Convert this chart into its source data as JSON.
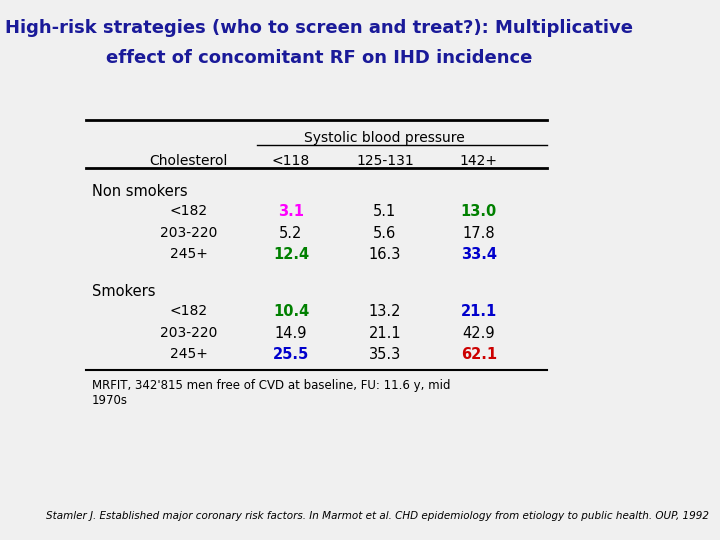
{
  "title_line1": "High-risk strategies (who to screen and treat?): Multiplicative",
  "title_line2": "effect of concomitant RF on IHD incidence",
  "title_color": "#1a1a99",
  "bg_color": "#f0f0f0",
  "sbp_header": "Systolic blood pressure",
  "col_headers": [
    "Cholesterol",
    "<118",
    "125-131",
    "142+"
  ],
  "row_group1": "Non smokers",
  "row_group2": "Smokers",
  "chol_labels": [
    "<182",
    "203-220",
    "245+"
  ],
  "non_smokers_data": [
    [
      "3.1",
      "5.1",
      "13.0"
    ],
    [
      "5.2",
      "5.6",
      "17.8"
    ],
    [
      "12.4",
      "16.3",
      "33.4"
    ]
  ],
  "smokers_data": [
    [
      "10.4",
      "13.2",
      "21.1"
    ],
    [
      "14.9",
      "21.1",
      "42.9"
    ],
    [
      "25.5",
      "35.3",
      "62.1"
    ]
  ],
  "non_smokers_colors": [
    [
      "#ff00ff",
      "#000000",
      "#008000"
    ],
    [
      "#000000",
      "#000000",
      "#000000"
    ],
    [
      "#008000",
      "#000000",
      "#0000cc"
    ]
  ],
  "smokers_colors": [
    [
      "#008000",
      "#000000",
      "#0000cc"
    ],
    [
      "#000000",
      "#000000",
      "#000000"
    ],
    [
      "#0000cc",
      "#000000",
      "#cc0000"
    ]
  ],
  "non_smokers_bold": [
    [
      true,
      false,
      true
    ],
    [
      false,
      false,
      false
    ],
    [
      true,
      false,
      true
    ]
  ],
  "smokers_bold": [
    [
      true,
      false,
      true
    ],
    [
      false,
      false,
      false
    ],
    [
      true,
      false,
      true
    ]
  ],
  "footnote": "MRFIT, 342'815 men free of CVD at baseline, FU: 11.6 y, mid\n1970s",
  "citation": "Stamler J. Established major coronary risk factors. In Marmot et al. CHD epidemiology from etiology to public health. OUP, 1992"
}
